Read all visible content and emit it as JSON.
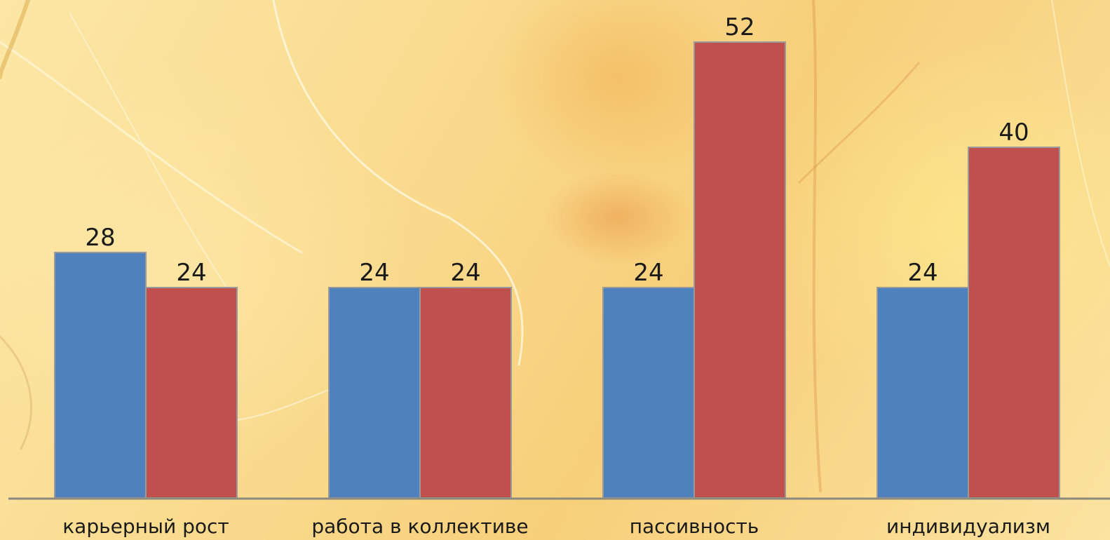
{
  "colors": {
    "series_blue": "#4f81bd",
    "series_red": "#c0504d",
    "axis": "#8c8a7e",
    "text": "#1a1a1a"
  },
  "chart_data": {
    "type": "bar",
    "categories": [
      "карьерный рост",
      "работа в коллективе",
      "пассивность",
      "индивидуализм"
    ],
    "series": [
      {
        "values": [
          28,
          24,
          24,
          24
        ],
        "color": "#4f81bd"
      },
      {
        "values": [
          24,
          24,
          52,
          40
        ],
        "color": "#c0504d"
      }
    ],
    "data_labels": true,
    "ylim": [
      0,
      55
    ],
    "grid": false,
    "legend": "none",
    "title": "",
    "xlabel": "",
    "ylabel": ""
  }
}
